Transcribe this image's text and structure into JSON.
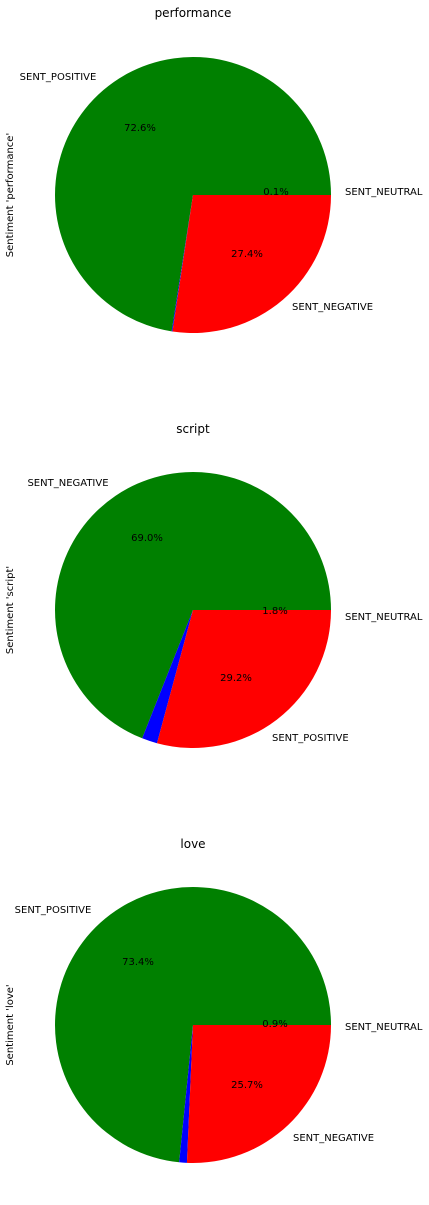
{
  "chart_data": [
    {
      "type": "pie",
      "title": "performance",
      "ylabel": "Sentiment 'performance'",
      "slices": [
        {
          "label": "SENT_POSITIVE",
          "percent": 72.6,
          "pct_text": "72.6%",
          "color": "#008000"
        },
        {
          "label": "SENT_NEUTRAL",
          "percent": 0.1,
          "pct_text": "0.1%",
          "color": "#0000ff"
        },
        {
          "label": "SENT_NEGATIVE",
          "percent": 27.4,
          "pct_text": "27.4%",
          "color": "#ff0000"
        }
      ]
    },
    {
      "type": "pie",
      "title": "script",
      "ylabel": "Sentiment 'script'",
      "slices": [
        {
          "label": "SENT_NEGATIVE",
          "percent": 69.0,
          "pct_text": "69.0%",
          "color": "#008000"
        },
        {
          "label": "SENT_NEUTRAL",
          "percent": 1.8,
          "pct_text": "1.8%",
          "color": "#0000ff"
        },
        {
          "label": "SENT_POSITIVE",
          "percent": 29.2,
          "pct_text": "29.2%",
          "color": "#ff0000"
        }
      ]
    },
    {
      "type": "pie",
      "title": "love",
      "ylabel": "Sentiment 'love'",
      "slices": [
        {
          "label": "SENT_POSITIVE",
          "percent": 73.4,
          "pct_text": "73.4%",
          "color": "#008000"
        },
        {
          "label": "SENT_NEUTRAL",
          "percent": 0.9,
          "pct_text": "0.9%",
          "color": "#0000ff"
        },
        {
          "label": "SENT_NEGATIVE",
          "percent": 25.7,
          "pct_text": "25.7%",
          "color": "#ff0000"
        }
      ]
    }
  ]
}
